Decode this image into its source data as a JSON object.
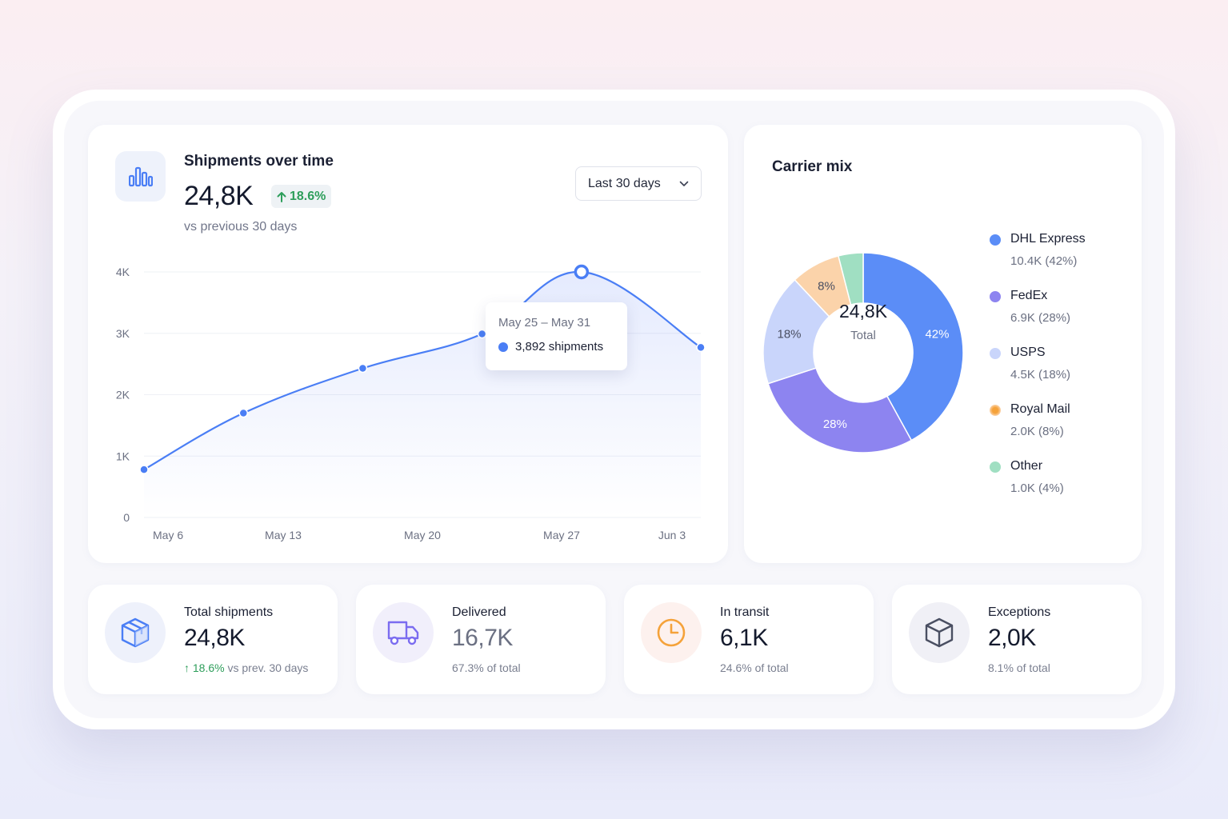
{
  "shipments_chart": {
    "title": "Shipments over time",
    "value": "24,8K",
    "delta": "18.6%",
    "subtitle": "vs previous 30 days",
    "range_select": "Last 30 days",
    "tooltip": {
      "range": "May 25 – May 31",
      "value": "3,892 shipments"
    },
    "accent_color": "#4a7ef5"
  },
  "carrier_mix": {
    "title": "Carrier mix",
    "center_value": "24,8K",
    "center_label": "Total"
  },
  "chart_data": [
    {
      "type": "area",
      "y_ticks": [
        "0",
        "1K",
        "2K",
        "3K",
        "4K"
      ],
      "x_ticks": [
        "May 6",
        "May 13",
        "May 20",
        "May 27",
        "Jun 3"
      ],
      "ylim": [
        0,
        4000
      ],
      "grid": true,
      "points": [
        {
          "x": "May 6",
          "y": 780
        },
        {
          "x": "May 11",
          "y": 1700
        },
        {
          "x": "May 17",
          "y": 2430
        },
        {
          "x": "May 23",
          "y": 2990
        },
        {
          "x": "May 28",
          "y": 4000
        },
        {
          "x": "Jun 3",
          "y": 2770
        }
      ],
      "highlight_point": "May 28"
    },
    {
      "type": "pie",
      "slices": [
        {
          "name": "DHL Express",
          "value": "10.4K (42%)",
          "pct": 42,
          "label": "42%",
          "color": "#5b8df7"
        },
        {
          "name": "FedEx",
          "value": "6.9K (28%)",
          "pct": 28,
          "label": "28%",
          "color": "#8d84f0"
        },
        {
          "name": "USPS",
          "value": "4.5K (18%)",
          "pct": 18,
          "label": "18%",
          "color": "#c9d5fb"
        },
        {
          "name": "Royal Mail",
          "value": "2.0K (8%)",
          "pct": 8,
          "label": "8%",
          "color": "#fbd3aa"
        },
        {
          "name": "Other",
          "value": "1.0K (4%)",
          "pct": 4,
          "label": "",
          "color": "#a0dfc2"
        }
      ],
      "legend_position": "right"
    }
  ],
  "stats": [
    {
      "label": "Total shipments",
      "value": "24,8K",
      "delta": "18.6%",
      "sub": " vs prev. 30 days",
      "icon": "box-3d-icon",
      "icon_color": "#4a7ef5",
      "icon_bg": "#eef1fb"
    },
    {
      "label": "Delivered",
      "value": "16,7K",
      "sub": "67.3% of total",
      "icon": "delivery-truck-icon",
      "icon_color": "#7b6cf0",
      "icon_bg": "#f1effb"
    },
    {
      "label": "In transit",
      "value": "6,1K",
      "sub": "24.6% of total",
      "icon": "clock-icon",
      "icon_color": "#f5a23a",
      "icon_bg": "#fdf1ee"
    },
    {
      "label": "Exceptions",
      "value": "2,0K",
      "sub": "8.1% of total",
      "icon": "package-icon",
      "icon_color": "#4a4f62",
      "icon_bg": "#f0f0f6"
    }
  ]
}
